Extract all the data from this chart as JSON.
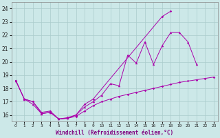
{
  "xlabel": "Windchill (Refroidissement éolien,°C)",
  "xlim": [
    -0.5,
    23.5
  ],
  "ylim": [
    15.5,
    24.5
  ],
  "x_ticks": [
    0,
    1,
    2,
    3,
    4,
    5,
    6,
    7,
    8,
    9,
    10,
    11,
    12,
    13,
    14,
    15,
    16,
    17,
    18,
    19,
    20,
    21,
    22,
    23
  ],
  "y_ticks": [
    16,
    17,
    18,
    19,
    20,
    21,
    22,
    23,
    24
  ],
  "bg_color": "#cce8e8",
  "grid_color": "#aacccc",
  "line_color": "#aa00aa",
  "line1_x": [
    0,
    1,
    2,
    3,
    4,
    5,
    6,
    7,
    8,
    9,
    10,
    11,
    12,
    13,
    14,
    15,
    16,
    17,
    18,
    19,
    20,
    21
  ],
  "line1_y": [
    18.6,
    17.2,
    16.8,
    16.1,
    16.2,
    15.7,
    15.75,
    16.0,
    16.6,
    17.0,
    17.5,
    18.35,
    18.2,
    20.5,
    19.9,
    21.5,
    19.8,
    21.2,
    22.2,
    22.2,
    21.5,
    19.8
  ],
  "line2_x": [
    0,
    1,
    2,
    3,
    4,
    5,
    6,
    7,
    8,
    9,
    17,
    18
  ],
  "line2_y": [
    18.6,
    17.2,
    17.0,
    16.1,
    16.2,
    15.7,
    15.8,
    16.0,
    16.8,
    17.2,
    23.4,
    23.8
  ],
  "line3_x": [
    0,
    1,
    2,
    3,
    4,
    5,
    6,
    7,
    8,
    9,
    10,
    11,
    12,
    13,
    14,
    15,
    16,
    17,
    18,
    19,
    20,
    21,
    22,
    23
  ],
  "line3_y": [
    18.6,
    17.2,
    17.0,
    16.2,
    16.3,
    15.7,
    15.75,
    15.9,
    16.3,
    16.7,
    17.0,
    17.2,
    17.4,
    17.55,
    17.7,
    17.85,
    18.0,
    18.15,
    18.3,
    18.45,
    18.55,
    18.65,
    18.75,
    18.85
  ]
}
